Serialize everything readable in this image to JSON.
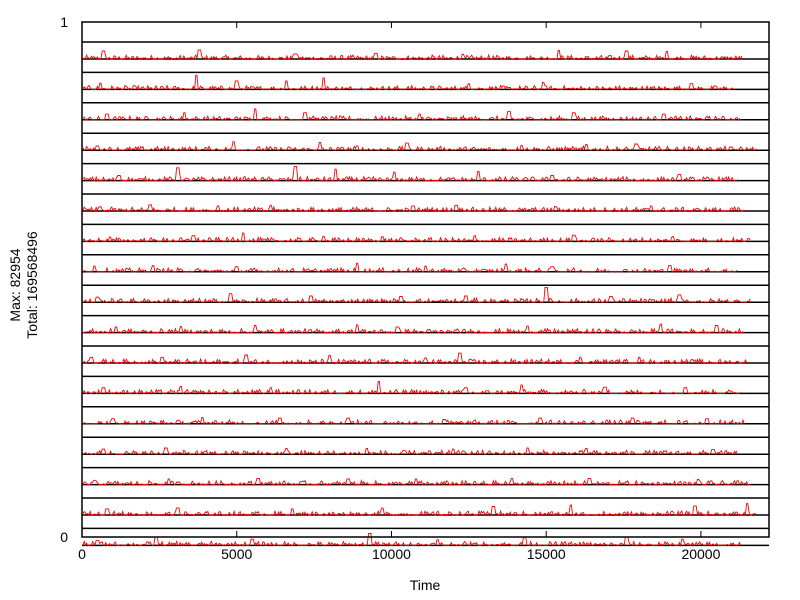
{
  "chart_data": {
    "type": "line",
    "title": "",
    "xlabel": "Time",
    "ylabel_lines": [
      "Max: 82954",
      "Total: 16956849​6"
    ],
    "xlim": [
      0,
      22200
    ],
    "ylim": [
      0,
      1
    ],
    "x_ticks": [
      0,
      5000,
      10000,
      15000,
      20000
    ],
    "y_ticks": [
      0,
      1
    ],
    "grid": false,
    "series_color": "#ff0000",
    "band_line_color": "#000000",
    "band_count": 17,
    "series": [
      {
        "end_x": 21350,
        "spikes": [
          [
            700,
            0.28
          ],
          [
            3800,
            0.32
          ],
          [
            6900,
            0.18
          ],
          [
            9500,
            0.2
          ],
          [
            12300,
            0.17
          ],
          [
            15400,
            0.3
          ],
          [
            17600,
            0.28
          ],
          [
            18900,
            0.27
          ]
        ]
      },
      {
        "end_x": 21050,
        "spikes": [
          [
            600,
            0.22
          ],
          [
            3700,
            0.5
          ],
          [
            5000,
            0.3
          ],
          [
            6600,
            0.3
          ],
          [
            7800,
            0.4
          ],
          [
            12500,
            0.2
          ],
          [
            14900,
            0.25
          ],
          [
            19700,
            0.2
          ]
        ]
      },
      {
        "end_x": 21300,
        "spikes": [
          [
            800,
            0.2
          ],
          [
            3300,
            0.25
          ],
          [
            5600,
            0.38
          ],
          [
            7200,
            0.25
          ],
          [
            10900,
            0.2
          ],
          [
            13800,
            0.3
          ],
          [
            15900,
            0.25
          ],
          [
            18800,
            0.2
          ]
        ]
      },
      {
        "end_x": 21800,
        "spikes": [
          [
            500,
            0.15
          ],
          [
            4900,
            0.3
          ],
          [
            7700,
            0.27
          ],
          [
            8900,
            0.15
          ],
          [
            10500,
            0.25
          ],
          [
            14200,
            0.17
          ],
          [
            16300,
            0.2
          ],
          [
            17900,
            0.22
          ]
        ]
      },
      {
        "end_x": 21200,
        "spikes": [
          [
            1200,
            0.18
          ],
          [
            3100,
            0.45
          ],
          [
            6900,
            0.5
          ],
          [
            8200,
            0.4
          ],
          [
            10100,
            0.3
          ],
          [
            12800,
            0.32
          ],
          [
            15200,
            0.18
          ],
          [
            19300,
            0.22
          ]
        ]
      },
      {
        "end_x": 21400,
        "spikes": [
          [
            600,
            0.15
          ],
          [
            2200,
            0.22
          ],
          [
            4400,
            0.18
          ],
          [
            6100,
            0.2
          ],
          [
            10700,
            0.18
          ],
          [
            12100,
            0.2
          ],
          [
            15300,
            0.16
          ],
          [
            18400,
            0.18
          ]
        ]
      },
      {
        "end_x": 21600,
        "spikes": [
          [
            900,
            0.15
          ],
          [
            3600,
            0.2
          ],
          [
            5200,
            0.3
          ],
          [
            7800,
            0.18
          ],
          [
            9700,
            0.17
          ],
          [
            12700,
            0.2
          ],
          [
            15900,
            0.22
          ],
          [
            19100,
            0.17
          ]
        ]
      },
      {
        "end_x": 21200,
        "spikes": [
          [
            400,
            0.2
          ],
          [
            2300,
            0.22
          ],
          [
            5000,
            0.18
          ],
          [
            8900,
            0.3
          ],
          [
            11100,
            0.2
          ],
          [
            13700,
            0.27
          ],
          [
            15200,
            0.18
          ],
          [
            19000,
            0.22
          ]
        ]
      },
      {
        "end_x": 21600,
        "spikes": [
          [
            500,
            0.18
          ],
          [
            4800,
            0.3
          ],
          [
            7400,
            0.22
          ],
          [
            10300,
            0.2
          ],
          [
            12400,
            0.22
          ],
          [
            15000,
            0.52
          ],
          [
            17100,
            0.2
          ],
          [
            19300,
            0.26
          ]
        ]
      },
      {
        "end_x": 21400,
        "spikes": [
          [
            1100,
            0.2
          ],
          [
            3200,
            0.22
          ],
          [
            5600,
            0.25
          ],
          [
            8900,
            0.27
          ],
          [
            10200,
            0.2
          ],
          [
            14400,
            0.23
          ],
          [
            18700,
            0.3
          ],
          [
            20500,
            0.25
          ]
        ]
      },
      {
        "end_x": 21500,
        "spikes": [
          [
            300,
            0.2
          ],
          [
            2600,
            0.2
          ],
          [
            5300,
            0.28
          ],
          [
            8000,
            0.27
          ],
          [
            11100,
            0.18
          ],
          [
            12200,
            0.35
          ],
          [
            16100,
            0.2
          ],
          [
            18000,
            0.2
          ]
        ]
      },
      {
        "end_x": 21300,
        "spikes": [
          [
            700,
            0.2
          ],
          [
            3200,
            0.25
          ],
          [
            6100,
            0.2
          ],
          [
            9600,
            0.42
          ],
          [
            12400,
            0.2
          ],
          [
            14200,
            0.3
          ],
          [
            16900,
            0.22
          ],
          [
            19500,
            0.2
          ]
        ]
      },
      {
        "end_x": 21400,
        "spikes": [
          [
            1000,
            0.18
          ],
          [
            3900,
            0.22
          ],
          [
            6400,
            0.2
          ],
          [
            8600,
            0.2
          ],
          [
            11700,
            0.15
          ],
          [
            14800,
            0.2
          ],
          [
            17800,
            0.2
          ],
          [
            20200,
            0.18
          ]
        ]
      },
      {
        "end_x": 21200,
        "spikes": [
          [
            700,
            0.18
          ],
          [
            2700,
            0.22
          ],
          [
            6600,
            0.2
          ],
          [
            9200,
            0.2
          ],
          [
            12000,
            0.18
          ],
          [
            14400,
            0.22
          ],
          [
            16300,
            0.2
          ],
          [
            20400,
            0.17
          ]
        ]
      },
      {
        "end_x": 21600,
        "spikes": [
          [
            400,
            0.15
          ],
          [
            2800,
            0.2
          ],
          [
            5700,
            0.22
          ],
          [
            8600,
            0.2
          ],
          [
            10800,
            0.2
          ],
          [
            13900,
            0.22
          ],
          [
            16400,
            0.22
          ],
          [
            19900,
            0.18
          ]
        ]
      },
      {
        "end_x": 21800,
        "spikes": [
          [
            800,
            0.22
          ],
          [
            3100,
            0.25
          ],
          [
            6800,
            0.22
          ],
          [
            9700,
            0.25
          ],
          [
            13300,
            0.3
          ],
          [
            15800,
            0.35
          ],
          [
            19800,
            0.32
          ],
          [
            21500,
            0.4
          ]
        ]
      },
      {
        "end_x": 21300,
        "spikes": [
          [
            500,
            0.18
          ],
          [
            2400,
            0.3
          ],
          [
            5500,
            0.22
          ],
          [
            9300,
            0.42
          ],
          [
            11500,
            0.2
          ],
          [
            14300,
            0.28
          ],
          [
            17600,
            0.3
          ],
          [
            19400,
            0.22
          ]
        ]
      }
    ]
  }
}
